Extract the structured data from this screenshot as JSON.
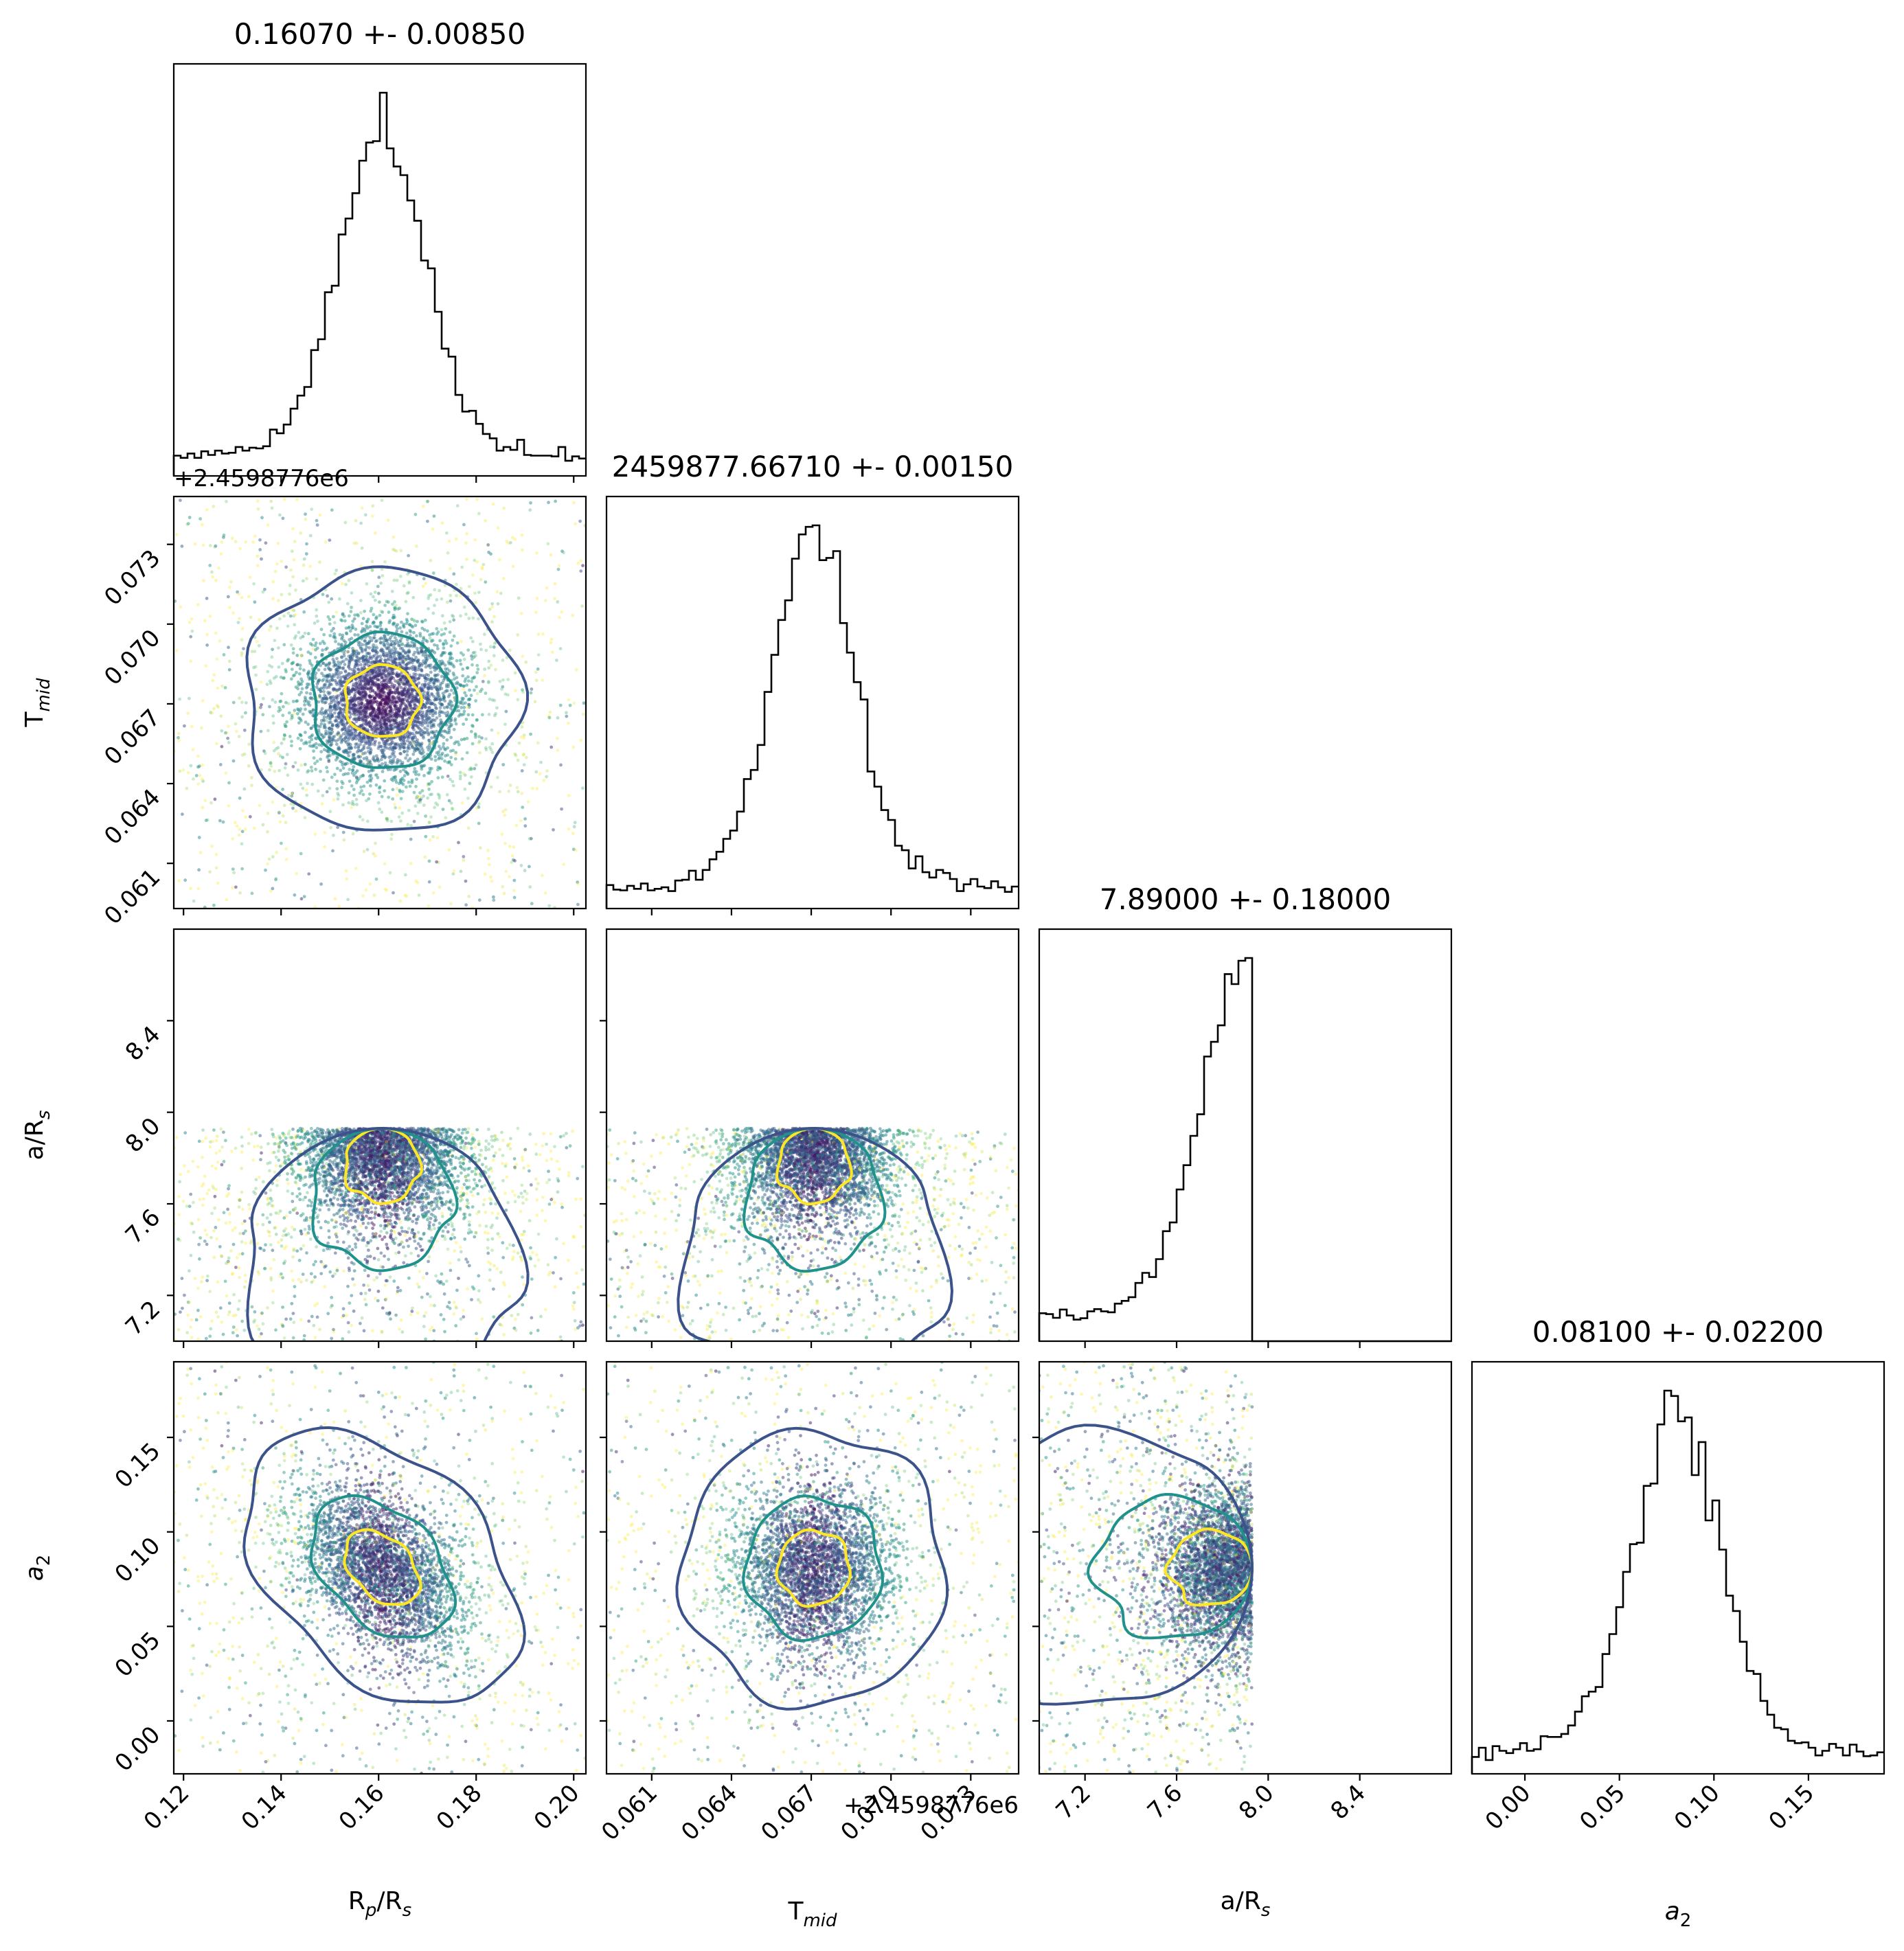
{
  "chart_data": {
    "type": "scatter",
    "subtype": "corner-plot",
    "parameters": [
      {
        "id": "rp",
        "label_main": "R",
        "label_sub": "p",
        "label_tail": "/R",
        "label_tail_sub": "s",
        "range": [
          0.118,
          0.2025
        ],
        "ticks": [
          0.12,
          0.14,
          0.16,
          0.18,
          0.2
        ],
        "tick_labels": [
          "0.12",
          "0.14",
          "0.16",
          "0.18",
          "0.20"
        ],
        "mean": 0.1607,
        "sigma": 0.0085
      },
      {
        "id": "tmid",
        "label_main": "T",
        "label_sub": "mid",
        "range": [
          0.0593,
          0.0748
        ],
        "ticks": [
          0.061,
          0.064,
          0.067,
          0.07,
          0.073
        ],
        "tick_labels": [
          "0.061",
          "0.064",
          "0.067",
          "0.070",
          "0.073"
        ],
        "offset_label": "+2.4598776e6",
        "mean": 0.0671,
        "sigma": 0.0015
      },
      {
        "id": "ars",
        "label_main": "a/R",
        "label_sub": "s",
        "range": [
          7.0,
          8.8
        ],
        "ticks": [
          7.2,
          7.6,
          8.0,
          8.4
        ],
        "tick_labels": [
          "7.2",
          "7.6",
          "8.0",
          "8.4"
        ],
        "mean": 7.89,
        "sigma": 0.18,
        "upper_bound": 7.93
      },
      {
        "id": "a2",
        "label_main": "a",
        "label_sub": "2",
        "italic": true,
        "range": [
          -0.028,
          0.19
        ],
        "ticks": [
          0.0,
          0.05,
          0.1,
          0.15
        ],
        "tick_labels": [
          "0.00",
          "0.05",
          "0.10",
          "0.15"
        ],
        "mean": 0.081,
        "sigma": 0.022
      }
    ],
    "titles": [
      "0.16070 +- 0.00850",
      "2459877.66710 +- 0.00150",
      "7.89000 +- 0.18000",
      "0.08100 +- 0.02200"
    ],
    "correlations": {
      "rp_a2": -0.4,
      "tmid_a2": 0.0,
      "rp_tmid": 0.0
    },
    "contour_colors": [
      "#3b528b",
      "#21918c",
      "#fde725"
    ],
    "point_colormap": "viridis",
    "histogram_color": "#000000"
  }
}
